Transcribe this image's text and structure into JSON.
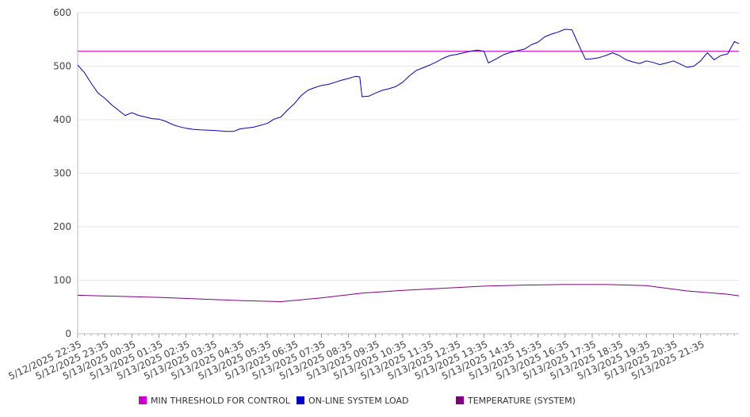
{
  "chart_data": {
    "type": "line",
    "title": "",
    "xlabel": "",
    "ylabel": "",
    "ylim": [
      0,
      600
    ],
    "yticks": [
      0,
      100,
      200,
      300,
      400,
      500,
      600
    ],
    "grid": true,
    "legend_position": "bottom",
    "x_tick_labels": [
      "5/12/2025 22:35",
      "5/12/2025 23:35",
      "5/13/2025 00:35",
      "5/13/2025 01:35",
      "5/13/2025 02:35",
      "5/13/2025 03:35",
      "5/13/2025 04:35",
      "5/13/2025 05:35",
      "5/13/2025 06:35",
      "5/13/2025 07:35",
      "5/13/2025 08:35",
      "5/13/2025 09:35",
      "5/13/2025 10:35",
      "5/13/2025 11:35",
      "5/13/2025 12:35",
      "5/13/2025 13:35",
      "5/13/2025 14:35",
      "5/13/2025 15:35",
      "5/13/2025 16:35",
      "5/13/2025 17:35",
      "5/13/2025 18:35",
      "5/13/2025 19:35",
      "5/13/2025 20:35",
      "5/13/2025 21:35"
    ],
    "x_range": [
      "5/12/2025 22:35",
      "5/13/2025 23:00"
    ],
    "series": [
      {
        "name": "MIN THRESHOLD FOR CONTROL",
        "color": "#cc00cc",
        "points": [
          [
            "5/12/2025 22:35",
            528
          ],
          [
            "5/13/2025 23:00",
            528
          ]
        ]
      },
      {
        "name": "ON-LINE SYSTEM LOAD",
        "color": "#0000cc",
        "points": [
          [
            "5/12/2025 22:35",
            502
          ],
          [
            "5/12/2025 22:50",
            488
          ],
          [
            "5/12/2025 23:05",
            468
          ],
          [
            "5/12/2025 23:20",
            450
          ],
          [
            "5/12/2025 23:35",
            440
          ],
          [
            "5/12/2025 23:50",
            428
          ],
          [
            "5/13/2025 00:05",
            418
          ],
          [
            "5/13/2025 00:20",
            408
          ],
          [
            "5/13/2025 00:35",
            413
          ],
          [
            "5/13/2025 00:50",
            408
          ],
          [
            "5/13/2025 01:05",
            405
          ],
          [
            "5/13/2025 01:20",
            402
          ],
          [
            "5/13/2025 01:35",
            401
          ],
          [
            "5/13/2025 01:50",
            397
          ],
          [
            "5/13/2025 02:05",
            391
          ],
          [
            "5/13/2025 02:20",
            387
          ],
          [
            "5/13/2025 02:35",
            384
          ],
          [
            "5/13/2025 02:50",
            382
          ],
          [
            "5/13/2025 03:05",
            381
          ],
          [
            "5/13/2025 03:35",
            380
          ],
          [
            "5/13/2025 04:05",
            378
          ],
          [
            "5/13/2025 04:20",
            378
          ],
          [
            "5/13/2025 04:35",
            383
          ],
          [
            "5/13/2025 05:05",
            386
          ],
          [
            "5/13/2025 05:35",
            393
          ],
          [
            "5/13/2025 05:50",
            401
          ],
          [
            "5/13/2025 06:05",
            405
          ],
          [
            "5/13/2025 06:20",
            418
          ],
          [
            "5/13/2025 06:35",
            430
          ],
          [
            "5/13/2025 06:50",
            445
          ],
          [
            "5/13/2025 07:05",
            455
          ],
          [
            "5/13/2025 07:20",
            460
          ],
          [
            "5/13/2025 07:35",
            464
          ],
          [
            "5/13/2025 07:50",
            466
          ],
          [
            "5/13/2025 08:05",
            470
          ],
          [
            "5/13/2025 08:20",
            474
          ],
          [
            "5/13/2025 08:35",
            477
          ],
          [
            "5/13/2025 08:50",
            481
          ],
          [
            "5/13/2025 09:00",
            480
          ],
          [
            "5/13/2025 09:05",
            443
          ],
          [
            "5/13/2025 09:20",
            444
          ],
          [
            "5/13/2025 09:35",
            450
          ],
          [
            "5/13/2025 09:50",
            455
          ],
          [
            "5/13/2025 10:05",
            458
          ],
          [
            "5/13/2025 10:20",
            462
          ],
          [
            "5/13/2025 10:35",
            470
          ],
          [
            "5/13/2025 10:50",
            482
          ],
          [
            "5/13/2025 11:05",
            492
          ],
          [
            "5/13/2025 11:20",
            497
          ],
          [
            "5/13/2025 11:35",
            502
          ],
          [
            "5/13/2025 11:50",
            508
          ],
          [
            "5/13/2025 12:05",
            515
          ],
          [
            "5/13/2025 12:20",
            520
          ],
          [
            "5/13/2025 12:35",
            522
          ],
          [
            "5/13/2025 12:50",
            525
          ],
          [
            "5/13/2025 13:05",
            528
          ],
          [
            "5/13/2025 13:20",
            530
          ],
          [
            "5/13/2025 13:35",
            528
          ],
          [
            "5/13/2025 13:45",
            506
          ],
          [
            "5/13/2025 14:05",
            515
          ],
          [
            "5/13/2025 14:20",
            522
          ],
          [
            "5/13/2025 14:35",
            526
          ],
          [
            "5/13/2025 14:50",
            529
          ],
          [
            "5/13/2025 15:05",
            532
          ],
          [
            "5/13/2025 15:20",
            540
          ],
          [
            "5/13/2025 15:35",
            545
          ],
          [
            "5/13/2025 15:50",
            555
          ],
          [
            "5/13/2025 16:05",
            560
          ],
          [
            "5/13/2025 16:20",
            564
          ],
          [
            "5/13/2025 16:35",
            569
          ],
          [
            "5/13/2025 16:50",
            568
          ],
          [
            "5/13/2025 17:05",
            540
          ],
          [
            "5/13/2025 17:20",
            513
          ],
          [
            "5/13/2025 17:35",
            514
          ],
          [
            "5/13/2025 17:50",
            516
          ],
          [
            "5/13/2025 18:05",
            520
          ],
          [
            "5/13/2025 18:20",
            525
          ],
          [
            "5/13/2025 18:35",
            520
          ],
          [
            "5/13/2025 18:50",
            512
          ],
          [
            "5/13/2025 19:05",
            508
          ],
          [
            "5/13/2025 19:20",
            505
          ],
          [
            "5/13/2025 19:35",
            510
          ],
          [
            "5/13/2025 19:50",
            507
          ],
          [
            "5/13/2025 20:05",
            503
          ],
          [
            "5/13/2025 20:20",
            506
          ],
          [
            "5/13/2025 20:35",
            510
          ],
          [
            "5/13/2025 20:50",
            504
          ],
          [
            "5/13/2025 21:05",
            498
          ],
          [
            "5/13/2025 21:20",
            500
          ],
          [
            "5/13/2025 21:35",
            510
          ],
          [
            "5/13/2025 21:50",
            525
          ],
          [
            "5/13/2025 22:05",
            512
          ],
          [
            "5/13/2025 22:20",
            520
          ],
          [
            "5/13/2025 22:35",
            523
          ],
          [
            "5/13/2025 22:50",
            546
          ],
          [
            "5/13/2025 23:00",
            542
          ]
        ]
      },
      {
        "name": "TEMPERATURE (SYSTEM)",
        "color": "#800080",
        "points": [
          [
            "5/12/2025 22:35",
            72
          ],
          [
            "5/13/2025 00:05",
            70
          ],
          [
            "5/13/2025 01:35",
            68
          ],
          [
            "5/13/2025 03:05",
            65
          ],
          [
            "5/13/2025 04:35",
            62
          ],
          [
            "5/13/2025 06:05",
            60
          ],
          [
            "5/13/2025 07:35",
            67
          ],
          [
            "5/13/2025 09:05",
            76
          ],
          [
            "5/13/2025 10:35",
            81
          ],
          [
            "5/13/2025 12:05",
            85
          ],
          [
            "5/13/2025 13:35",
            89
          ],
          [
            "5/13/2025 15:05",
            91
          ],
          [
            "5/13/2025 16:35",
            92
          ],
          [
            "5/13/2025 18:05",
            92
          ],
          [
            "5/13/2025 19:35",
            90
          ],
          [
            "5/13/2025 21:05",
            80
          ],
          [
            "5/13/2025 22:35",
            74
          ],
          [
            "5/13/2025 23:00",
            71
          ]
        ]
      }
    ]
  }
}
